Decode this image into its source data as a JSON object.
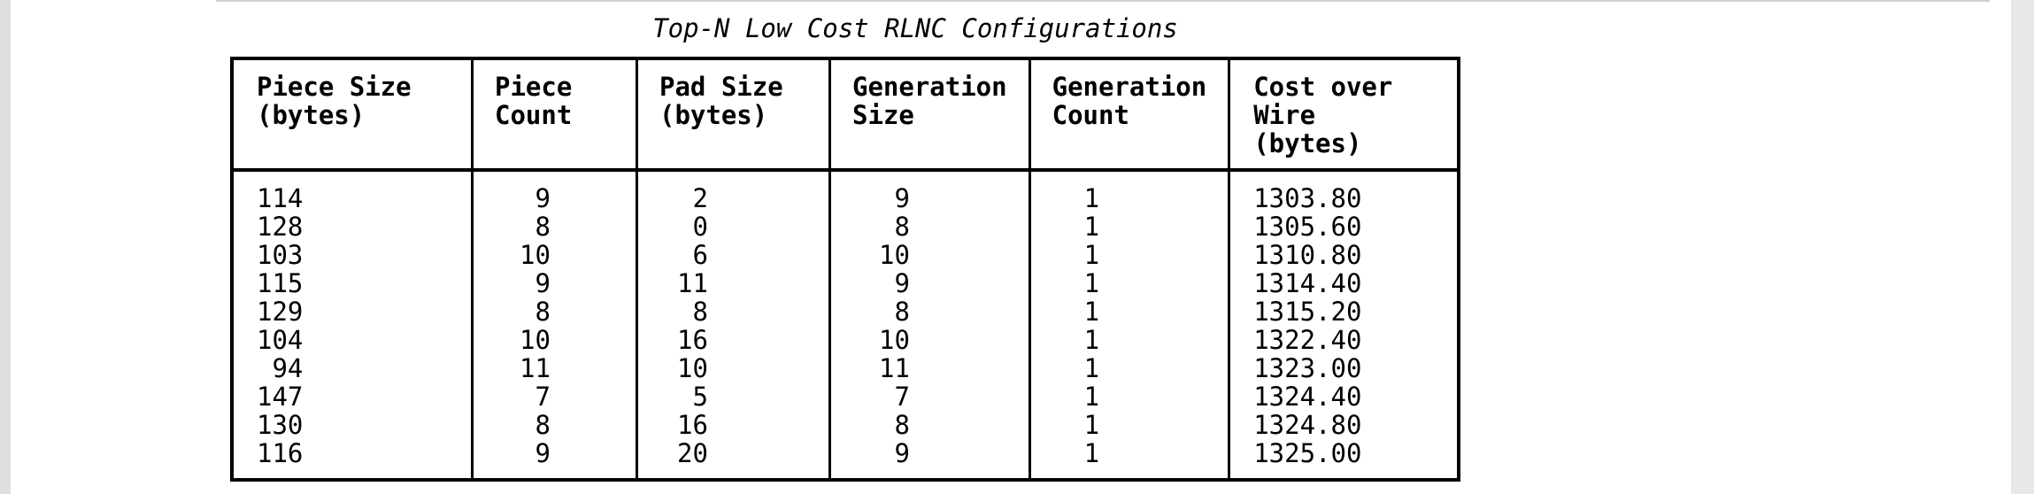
{
  "caption": "Top-N Low Cost RLNC Configurations",
  "table": {
    "headers": [
      "Piece Size\n(bytes)",
      "Piece Count",
      "Pad Size\n(bytes)",
      "Generation\nSize",
      "Generation\nCount",
      "Cost over\nWire (bytes)"
    ],
    "rows": [
      [
        "114",
        " 9",
        " 2",
        " 9",
        "1",
        "1303.80"
      ],
      [
        "128",
        " 8",
        " 0",
        " 8",
        "1",
        "1305.60"
      ],
      [
        "103",
        "10",
        " 6",
        "10",
        "1",
        "1310.80"
      ],
      [
        "115",
        " 9",
        "11",
        " 9",
        "1",
        "1314.40"
      ],
      [
        "129",
        " 8",
        " 8",
        " 8",
        "1",
        "1315.20"
      ],
      [
        "104",
        "10",
        "16",
        "10",
        "1",
        "1322.40"
      ],
      [
        " 94",
        "11",
        "10",
        "11",
        "1",
        "1323.00"
      ],
      [
        "147",
        " 7",
        " 5",
        " 7",
        "1",
        "1324.40"
      ],
      [
        "130",
        " 8",
        "16",
        " 8",
        "1",
        "1324.80"
      ],
      [
        "116",
        " 9",
        "20",
        " 9",
        "1",
        "1325.00"
      ]
    ]
  }
}
